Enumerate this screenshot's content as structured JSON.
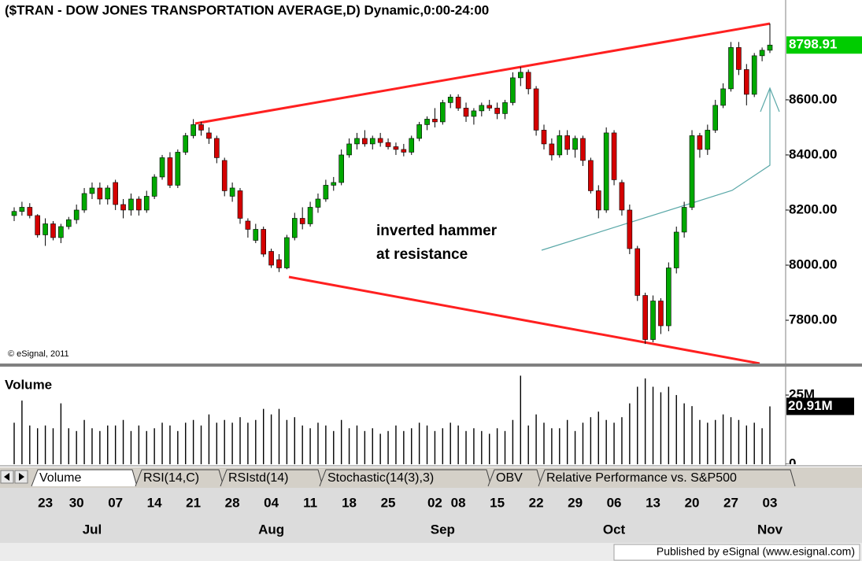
{
  "chart_data": {
    "type": "candlestick",
    "title": "($TRAN - DOW JONES TRANSPORTATION AVERAGE,D) Dynamic,0:00-24:00",
    "copyright": "© eSignal, 2011",
    "annotation": [
      "inverted hammer",
      "at resistance"
    ],
    "volume_title": "Volume",
    "tabs": [
      "Volume",
      "RSI(14,C)",
      "RSIstd(14)",
      "Stochastic(14(3),3)",
      "OBV",
      "Relative Performance vs. S&P500"
    ],
    "footer": "Published by eSignal (www.esignal.com)",
    "last_close_label": "8798.91",
    "last_volume_label": "20.91M",
    "up_color": "#00a800",
    "down_color": "#d40000",
    "volume_color": "#000000",
    "last_close_color": "#00cc00",
    "categories": [
      null,
      null,
      null,
      null,
      "23",
      null,
      null,
      null,
      "30",
      null,
      null,
      null,
      null,
      "07",
      null,
      null,
      null,
      null,
      "14",
      null,
      null,
      null,
      null,
      "21",
      null,
      null,
      null,
      null,
      "28",
      null,
      null,
      null,
      null,
      "04",
      null,
      null,
      null,
      null,
      "11",
      null,
      null,
      null,
      null,
      "18",
      null,
      null,
      null,
      null,
      "25",
      null,
      null,
      null,
      null,
      null,
      "02",
      null,
      null,
      "08",
      null,
      null,
      null,
      null,
      "15",
      null,
      null,
      null,
      null,
      "22",
      null,
      null,
      null,
      null,
      "29",
      null,
      null,
      null,
      null,
      "06",
      null,
      null,
      null,
      null,
      "13",
      null,
      null,
      null,
      null,
      "20",
      null,
      null,
      null,
      null,
      "27",
      null,
      null,
      null,
      null,
      "03"
    ],
    "months": [
      null,
      null,
      null,
      null,
      null,
      null,
      null,
      null,
      null,
      null,
      "Jul",
      null,
      null,
      null,
      null,
      null,
      null,
      null,
      null,
      null,
      null,
      null,
      null,
      null,
      null,
      null,
      null,
      null,
      null,
      null,
      null,
      null,
      null,
      "Aug",
      null,
      null,
      null,
      null,
      null,
      null,
      null,
      null,
      null,
      null,
      null,
      null,
      null,
      null,
      null,
      null,
      null,
      null,
      null,
      null,
      null,
      "Sep",
      null,
      null,
      null,
      null,
      null,
      null,
      null,
      null,
      null,
      null,
      null,
      null,
      null,
      null,
      null,
      null,
      null,
      null,
      null,
      null,
      null,
      "Oct",
      null,
      null,
      null,
      null,
      null,
      null,
      null,
      null,
      null,
      null,
      null,
      null,
      null,
      null,
      null,
      null,
      null,
      null,
      null,
      "Nov"
    ],
    "open": [
      8180,
      8195,
      8210,
      8180,
      8110,
      8150,
      8100,
      8140,
      8165,
      8200,
      8260,
      8280,
      8240,
      8300,
      8220,
      8200,
      8240,
      8200,
      8250,
      8320,
      8390,
      8290,
      8410,
      8470,
      8510,
      8480,
      8460,
      8380,
      8250,
      8270,
      8160,
      8090,
      8130,
      8050,
      8020,
      7990,
      8100,
      8170,
      8150,
      8210,
      8240,
      8290,
      8300,
      8400,
      8440,
      8460,
      8440,
      8460,
      8445,
      8430,
      8420,
      8410,
      8460,
      8510,
      8530,
      8520,
      8590,
      8610,
      8570,
      8540,
      8560,
      8580,
      8570,
      8550,
      8590,
      8680,
      8700,
      8640,
      8490,
      8440,
      8400,
      8470,
      8420,
      8460,
      8380,
      8270,
      8200,
      8480,
      8300,
      8200,
      8060,
      7890,
      7730,
      7870,
      7780,
      7990,
      8120,
      8210,
      8470,
      8420,
      8490,
      8580,
      8640,
      8790,
      8710,
      8620,
      8760,
      8780
    ],
    "high": [
      8210,
      8230,
      8225,
      8185,
      8170,
      8160,
      8150,
      8175,
      8220,
      8280,
      8300,
      8300,
      8290,
      8310,
      8240,
      8260,
      8250,
      8270,
      8330,
      8400,
      8410,
      8420,
      8480,
      8530,
      8520,
      8500,
      8470,
      8390,
      8300,
      8280,
      8170,
      8150,
      8140,
      8060,
      8040,
      8110,
      8190,
      8210,
      8230,
      8260,
      8310,
      8320,
      8420,
      8460,
      8480,
      8490,
      8470,
      8480,
      8460,
      8445,
      8440,
      8470,
      8520,
      8540,
      8570,
      8600,
      8620,
      8620,
      8590,
      8570,
      8590,
      8600,
      8590,
      8600,
      8700,
      8720,
      8710,
      8650,
      8510,
      8460,
      8490,
      8490,
      8470,
      8470,
      8390,
      8290,
      8500,
      8490,
      8310,
      8220,
      8070,
      7900,
      7890,
      7880,
      8010,
      8140,
      8230,
      8490,
      8480,
      8510,
      8600,
      8660,
      8810,
      8810,
      8730,
      8770,
      8790,
      8877
    ],
    "low": [
      8160,
      8180,
      8170,
      8100,
      8070,
      8090,
      8080,
      8130,
      8150,
      8190,
      8240,
      8220,
      8220,
      8200,
      8170,
      8180,
      8180,
      8190,
      8240,
      8310,
      8280,
      8280,
      8400,
      8460,
      8470,
      8440,
      8370,
      8250,
      8230,
      8150,
      8100,
      8080,
      8030,
      7990,
      7975,
      7985,
      8090,
      8130,
      8140,
      8190,
      8230,
      8270,
      8290,
      8390,
      8420,
      8430,
      8420,
      8430,
      8420,
      8400,
      8395,
      8400,
      8450,
      8490,
      8500,
      8510,
      8570,
      8560,
      8520,
      8510,
      8540,
      8560,
      8530,
      8530,
      8580,
      8650,
      8620,
      8470,
      8420,
      8380,
      8390,
      8400,
      8390,
      8360,
      8260,
      8170,
      8190,
      8290,
      8180,
      8040,
      7870,
      7714,
      7720,
      7750,
      7760,
      7970,
      8100,
      8200,
      8390,
      8400,
      8480,
      8570,
      8630,
      8690,
      8580,
      8610,
      8740,
      8770
    ],
    "close": [
      8195,
      8210,
      8180,
      8110,
      8150,
      8100,
      8140,
      8165,
      8200,
      8260,
      8280,
      8240,
      8280,
      8220,
      8200,
      8240,
      8200,
      8250,
      8320,
      8390,
      8290,
      8410,
      8470,
      8510,
      8490,
      8460,
      8390,
      8270,
      8280,
      8170,
      8130,
      8130,
      8040,
      8000,
      7990,
      8100,
      8170,
      8150,
      8210,
      8240,
      8290,
      8300,
      8400,
      8440,
      8460,
      8440,
      8460,
      8445,
      8430,
      8420,
      8410,
      8460,
      8510,
      8530,
      8520,
      8590,
      8610,
      8570,
      8540,
      8560,
      8580,
      8570,
      8550,
      8590,
      8680,
      8700,
      8640,
      8490,
      8440,
      8400,
      8470,
      8420,
      8460,
      8380,
      8270,
      8200,
      8480,
      8310,
      8200,
      8060,
      7890,
      7730,
      7870,
      7780,
      7990,
      8120,
      8210,
      8470,
      8420,
      8490,
      8580,
      8640,
      8790,
      8710,
      8620,
      8760,
      8780,
      8798.91
    ],
    "volume": [
      15,
      23,
      14,
      13,
      14,
      13,
      22,
      13,
      12,
      16,
      13,
      12,
      14,
      14,
      16,
      12,
      14,
      12,
      13,
      15,
      14,
      12,
      15,
      16,
      14,
      18,
      15,
      16,
      15,
      17,
      15,
      16,
      20,
      18,
      20,
      16,
      17,
      14,
      13,
      15,
      14,
      12,
      16,
      13,
      14,
      12,
      13,
      11,
      12,
      14,
      12,
      13,
      15,
      14,
      12,
      13,
      15,
      14,
      12,
      13,
      12,
      11,
      13,
      12,
      16,
      32,
      14,
      18,
      15,
      13,
      13,
      16,
      12,
      15,
      17,
      19,
      16,
      15,
      17,
      22,
      28,
      31,
      28,
      26,
      28,
      25,
      22,
      21,
      16,
      15,
      16,
      18,
      17,
      16,
      14,
      15,
      13,
      20.91
    ],
    "ylim": [
      7643,
      8911
    ],
    "yticks": [
      {
        "value": 7800,
        "label": "7800.00"
      },
      {
        "value": 8000,
        "label": "8000.00"
      },
      {
        "value": 8200,
        "label": "8200.00"
      },
      {
        "value": 8400,
        "label": "8400.00"
      },
      {
        "value": 8600,
        "label": "8600.00"
      }
    ],
    "volume_ylim": [
      0,
      32.7
    ],
    "volume_yticks": [
      0,
      {
        "value": 25,
        "label": "25M"
      }
    ]
  }
}
